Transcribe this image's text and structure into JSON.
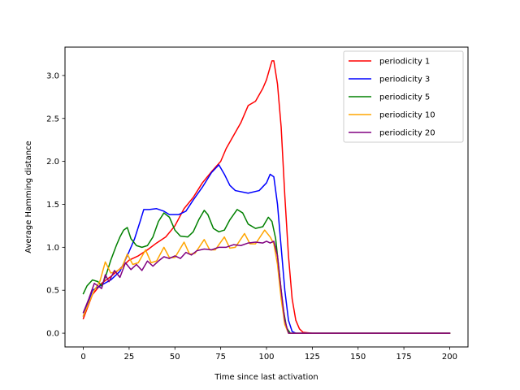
{
  "chart_data": {
    "type": "line",
    "title": "",
    "xlabel": "Time since last activation",
    "ylabel": "Average Hamming distance",
    "xlim": [
      -10,
      210
    ],
    "ylim": [
      -0.16,
      3.33
    ],
    "xticks": [
      0,
      25,
      50,
      75,
      100,
      125,
      150,
      175,
      200
    ],
    "yticks": [
      0.0,
      0.5,
      1.0,
      1.5,
      2.0,
      2.5,
      3.0
    ],
    "xtick_labels": [
      "0",
      "25",
      "50",
      "75",
      "100",
      "125",
      "150",
      "175",
      "200"
    ],
    "ytick_labels": [
      "0.0",
      "0.5",
      "1.0",
      "1.5",
      "2.0",
      "2.5",
      "3.0"
    ],
    "legend_position": "top-right",
    "grid": false,
    "series": [
      {
        "name": "periodicity 1",
        "color": "#ff0000",
        "points": [
          [
            0,
            0.17
          ],
          [
            5,
            0.45
          ],
          [
            10,
            0.58
          ],
          [
            15,
            0.66
          ],
          [
            20,
            0.75
          ],
          [
            25,
            0.85
          ],
          [
            30,
            0.9
          ],
          [
            35,
            0.97
          ],
          [
            40,
            1.05
          ],
          [
            45,
            1.12
          ],
          [
            50,
            1.25
          ],
          [
            55,
            1.45
          ],
          [
            60,
            1.58
          ],
          [
            65,
            1.75
          ],
          [
            70,
            1.88
          ],
          [
            75,
            2.0
          ],
          [
            78,
            2.15
          ],
          [
            82,
            2.3
          ],
          [
            86,
            2.45
          ],
          [
            90,
            2.65
          ],
          [
            94,
            2.7
          ],
          [
            98,
            2.85
          ],
          [
            100,
            2.95
          ],
          [
            102,
            3.1
          ],
          [
            103,
            3.17
          ],
          [
            104,
            3.17
          ],
          [
            106,
            2.9
          ],
          [
            108,
            2.4
          ],
          [
            110,
            1.6
          ],
          [
            112,
            0.9
          ],
          [
            114,
            0.4
          ],
          [
            116,
            0.15
          ],
          [
            118,
            0.05
          ],
          [
            120,
            0.01
          ],
          [
            125,
            0.0
          ],
          [
            200,
            0.0
          ]
        ]
      },
      {
        "name": "periodicity 3",
        "color": "#0000ff",
        "points": [
          [
            0,
            0.2
          ],
          [
            5,
            0.5
          ],
          [
            10,
            0.56
          ],
          [
            15,
            0.62
          ],
          [
            20,
            0.72
          ],
          [
            25,
            0.95
          ],
          [
            28,
            1.1
          ],
          [
            31,
            1.3
          ],
          [
            33,
            1.44
          ],
          [
            36,
            1.44
          ],
          [
            40,
            1.45
          ],
          [
            44,
            1.42
          ],
          [
            47,
            1.38
          ],
          [
            52,
            1.38
          ],
          [
            56,
            1.42
          ],
          [
            60,
            1.55
          ],
          [
            65,
            1.7
          ],
          [
            70,
            1.87
          ],
          [
            74,
            1.96
          ],
          [
            77,
            1.85
          ],
          [
            80,
            1.72
          ],
          [
            83,
            1.66
          ],
          [
            90,
            1.63
          ],
          [
            96,
            1.66
          ],
          [
            100,
            1.75
          ],
          [
            102,
            1.85
          ],
          [
            104,
            1.82
          ],
          [
            106,
            1.5
          ],
          [
            108,
            1.0
          ],
          [
            110,
            0.5
          ],
          [
            112,
            0.15
          ],
          [
            114,
            0.02
          ],
          [
            116,
            0.0
          ],
          [
            200,
            0.0
          ]
        ]
      },
      {
        "name": "periodicity 5",
        "color": "#008000",
        "points": [
          [
            0,
            0.46
          ],
          [
            2,
            0.55
          ],
          [
            5,
            0.62
          ],
          [
            8,
            0.6
          ],
          [
            10,
            0.55
          ],
          [
            12,
            0.65
          ],
          [
            15,
            0.85
          ],
          [
            18,
            1.02
          ],
          [
            20,
            1.12
          ],
          [
            22,
            1.2
          ],
          [
            24,
            1.23
          ],
          [
            26,
            1.1
          ],
          [
            29,
            1.02
          ],
          [
            32,
            1.0
          ],
          [
            35,
            1.02
          ],
          [
            38,
            1.12
          ],
          [
            41,
            1.3
          ],
          [
            44,
            1.4
          ],
          [
            47,
            1.35
          ],
          [
            50,
            1.2
          ],
          [
            53,
            1.13
          ],
          [
            57,
            1.12
          ],
          [
            60,
            1.18
          ],
          [
            63,
            1.32
          ],
          [
            66,
            1.43
          ],
          [
            68,
            1.38
          ],
          [
            71,
            1.22
          ],
          [
            74,
            1.18
          ],
          [
            77,
            1.2
          ],
          [
            80,
            1.32
          ],
          [
            84,
            1.44
          ],
          [
            87,
            1.4
          ],
          [
            90,
            1.27
          ],
          [
            94,
            1.22
          ],
          [
            98,
            1.24
          ],
          [
            101,
            1.35
          ],
          [
            103,
            1.3
          ],
          [
            105,
            1.1
          ],
          [
            107,
            0.7
          ],
          [
            109,
            0.3
          ],
          [
            111,
            0.06
          ],
          [
            113,
            0.0
          ],
          [
            200,
            0.0
          ]
        ]
      },
      {
        "name": "periodicity 10",
        "color": "#ffa500",
        "points": [
          [
            0,
            0.2
          ],
          [
            3,
            0.35
          ],
          [
            6,
            0.5
          ],
          [
            9,
            0.6
          ],
          [
            12,
            0.83
          ],
          [
            15,
            0.7
          ],
          [
            18,
            0.72
          ],
          [
            21,
            0.76
          ],
          [
            24,
            0.92
          ],
          [
            27,
            0.8
          ],
          [
            30,
            0.82
          ],
          [
            34,
            0.97
          ],
          [
            37,
            0.82
          ],
          [
            40,
            0.84
          ],
          [
            44,
            1.0
          ],
          [
            47,
            0.88
          ],
          [
            50,
            0.88
          ],
          [
            55,
            1.06
          ],
          [
            58,
            0.92
          ],
          [
            61,
            0.93
          ],
          [
            66,
            1.09
          ],
          [
            69,
            0.97
          ],
          [
            72,
            0.97
          ],
          [
            77,
            1.12
          ],
          [
            80,
            0.99
          ],
          [
            83,
            1.0
          ],
          [
            88,
            1.16
          ],
          [
            91,
            1.04
          ],
          [
            94,
            1.04
          ],
          [
            99,
            1.2
          ],
          [
            102,
            1.12
          ],
          [
            104,
            1.04
          ],
          [
            106,
            0.8
          ],
          [
            108,
            0.4
          ],
          [
            110,
            0.1
          ],
          [
            112,
            0.0
          ],
          [
            200,
            0.0
          ]
        ]
      },
      {
        "name": "periodicity 20",
        "color": "#800080",
        "points": [
          [
            0,
            0.24
          ],
          [
            3,
            0.4
          ],
          [
            6,
            0.58
          ],
          [
            8,
            0.55
          ],
          [
            10,
            0.52
          ],
          [
            12,
            0.68
          ],
          [
            14,
            0.6
          ],
          [
            17,
            0.73
          ],
          [
            20,
            0.65
          ],
          [
            23,
            0.82
          ],
          [
            26,
            0.74
          ],
          [
            29,
            0.8
          ],
          [
            32,
            0.73
          ],
          [
            35,
            0.84
          ],
          [
            38,
            0.78
          ],
          [
            41,
            0.84
          ],
          [
            44,
            0.89
          ],
          [
            47,
            0.87
          ],
          [
            50,
            0.9
          ],
          [
            53,
            0.87
          ],
          [
            56,
            0.94
          ],
          [
            59,
            0.91
          ],
          [
            62,
            0.96
          ],
          [
            66,
            0.98
          ],
          [
            70,
            0.97
          ],
          [
            74,
            1.0
          ],
          [
            78,
            1.0
          ],
          [
            82,
            1.03
          ],
          [
            86,
            1.02
          ],
          [
            90,
            1.05
          ],
          [
            94,
            1.06
          ],
          [
            98,
            1.05
          ],
          [
            100,
            1.07
          ],
          [
            102,
            1.05
          ],
          [
            104,
            1.07
          ],
          [
            106,
            0.9
          ],
          [
            108,
            0.5
          ],
          [
            110,
            0.15
          ],
          [
            112,
            0.0
          ],
          [
            200,
            0.0
          ]
        ]
      }
    ]
  }
}
